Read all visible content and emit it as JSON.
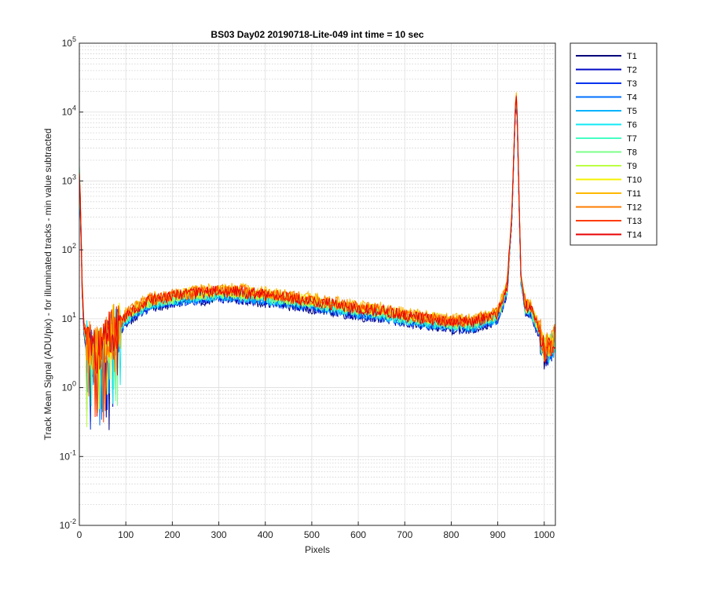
{
  "chart_data": {
    "type": "line",
    "title": "BS03 Day02 20190718-Lite-049 int time = 10 sec",
    "xlabel": "Pixels",
    "ylabel": "Track Mean Signal (ADU/pix) - for illuminated tracks - min value subtracted",
    "xlim": [
      0,
      1024
    ],
    "ylim": [
      0.01,
      100000
    ],
    "yscale": "log",
    "grid": true,
    "minor_grid": true,
    "legend_position": "outside-top-right",
    "xticks": [
      "0",
      "100",
      "200",
      "300",
      "400",
      "500",
      "600",
      "700",
      "800",
      "900",
      "1000"
    ],
    "yticks": [
      {
        "base": "10",
        "exp": "-2"
      },
      {
        "base": "10",
        "exp": "-1"
      },
      {
        "base": "10",
        "exp": "0"
      },
      {
        "base": "10",
        "exp": "1"
      },
      {
        "base": "10",
        "exp": "2"
      },
      {
        "base": "10",
        "exp": "3"
      },
      {
        "base": "10",
        "exp": "4"
      },
      {
        "base": "10",
        "exp": "5"
      }
    ],
    "profile": {
      "x": [
        0,
        3,
        6,
        10,
        15,
        20,
        30,
        40,
        50,
        60,
        70,
        80,
        100,
        120,
        150,
        200,
        250,
        300,
        350,
        400,
        450,
        500,
        550,
        600,
        650,
        700,
        750,
        800,
        850,
        900,
        920,
        930,
        935,
        938,
        940,
        942,
        945,
        950,
        960,
        970,
        980,
        990,
        995,
        1000,
        1010,
        1023
      ],
      "y": [
        1500,
        300,
        30,
        8,
        5,
        4,
        3.5,
        3.5,
        4,
        5,
        7,
        7,
        11,
        14,
        18,
        21,
        23,
        25,
        24,
        22,
        20,
        18,
        16,
        14,
        13,
        11,
        10,
        9,
        9,
        12,
        30,
        300,
        3000,
        12000,
        17000,
        8000,
        1000,
        40,
        15,
        15,
        10,
        7,
        4.5,
        3.5,
        4,
        5
      ]
    },
    "series": [
      {
        "name": "T1",
        "color": "#00007a",
        "scale": 0.8
      },
      {
        "name": "T2",
        "color": "#0008c4",
        "scale": 0.82
      },
      {
        "name": "T3",
        "color": "#0033f0",
        "scale": 0.84
      },
      {
        "name": "T4",
        "color": "#0070ff",
        "scale": 0.86
      },
      {
        "name": "T5",
        "color": "#00b4ff",
        "scale": 0.88
      },
      {
        "name": "T6",
        "color": "#10e8f4",
        "scale": 0.9
      },
      {
        "name": "T7",
        "color": "#44ffc2",
        "scale": 0.92
      },
      {
        "name": "T8",
        "color": "#7cff88",
        "scale": 0.95
      },
      {
        "name": "T9",
        "color": "#bcff44",
        "scale": 0.98
      },
      {
        "name": "T10",
        "color": "#f4f000",
        "scale": 1.04
      },
      {
        "name": "T11",
        "color": "#ffb800",
        "scale": 1.1
      },
      {
        "name": "T12",
        "color": "#ff7c00",
        "scale": 1.06
      },
      {
        "name": "T13",
        "color": "#ff3c00",
        "scale": 1.02
      },
      {
        "name": "T14",
        "color": "#e80000",
        "scale": 1.0
      }
    ]
  }
}
